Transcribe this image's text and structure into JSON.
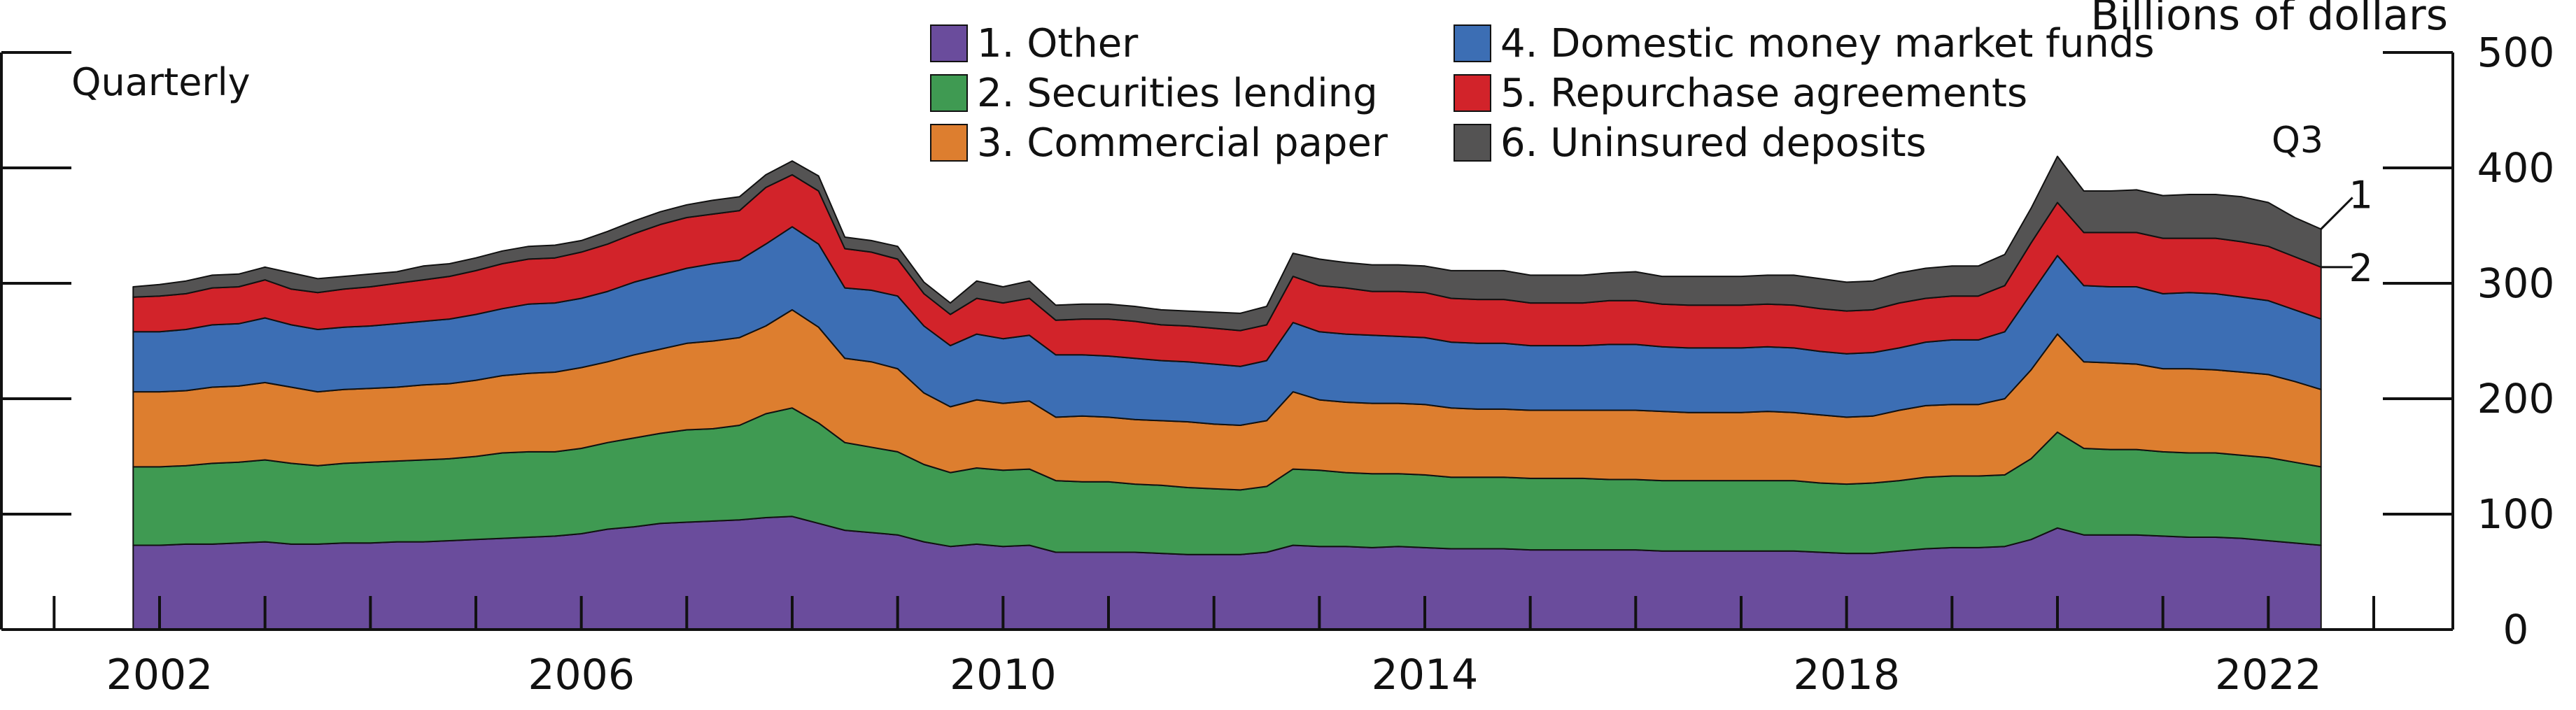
{
  "chart_data": {
    "type": "area",
    "stacked": true,
    "frequency_note": "Quarterly",
    "ylabel": "Billions of dollars",
    "ylim": [
      0,
      500
    ],
    "yticks": [
      0,
      100,
      200,
      300,
      400,
      500
    ],
    "xlim": [
      2000.5,
      2023.75
    ],
    "x_tick_labels": [
      {
        "x": 2002,
        "label": "2002"
      },
      {
        "x": 2006,
        "label": "2006"
      },
      {
        "x": 2010,
        "label": "2010"
      },
      {
        "x": 2014,
        "label": "2014"
      },
      {
        "x": 2018,
        "label": "2018"
      },
      {
        "x": 2022,
        "label": "2022"
      }
    ],
    "last_period_label": "Q3",
    "line_labels": [
      {
        "text": "1",
        "series": "total"
      },
      {
        "text": "2",
        "series": "total_excl_uninsured"
      }
    ],
    "legend": {
      "placement": "top-center",
      "entries": [
        {
          "label": "1. Other",
          "color": "#6a4c9c"
        },
        {
          "label": "2. Securities lending",
          "color": "#3f9a52"
        },
        {
          "label": "3. Commercial paper",
          "color": "#dd7e2f"
        },
        {
          "label": "4. Domestic money market funds",
          "color": "#3c6eb4"
        },
        {
          "label": "5. Repurchase agreements",
          "color": "#d2232a"
        },
        {
          "label": "6. Uninsured deposits",
          "color": "#545353"
        }
      ]
    },
    "x": [
      2001.75,
      2002.0,
      2002.25,
      2002.5,
      2002.75,
      2003.0,
      2003.25,
      2003.5,
      2003.75,
      2004.0,
      2004.25,
      2004.5,
      2004.75,
      2005.0,
      2005.25,
      2005.5,
      2005.75,
      2006.0,
      2006.25,
      2006.5,
      2006.75,
      2007.0,
      2007.25,
      2007.5,
      2007.75,
      2008.0,
      2008.25,
      2008.5,
      2008.75,
      2009.0,
      2009.25,
      2009.5,
      2009.75,
      2010.0,
      2010.25,
      2010.5,
      2010.75,
      2011.0,
      2011.25,
      2011.5,
      2011.75,
      2012.0,
      2012.25,
      2012.5,
      2012.75,
      2013.0,
      2013.25,
      2013.5,
      2013.75,
      2014.0,
      2014.25,
      2014.5,
      2014.75,
      2015.0,
      2015.25,
      2015.5,
      2015.75,
      2016.0,
      2016.25,
      2016.5,
      2016.75,
      2017.0,
      2017.25,
      2017.5,
      2017.75,
      2018.0,
      2018.25,
      2018.5,
      2018.75,
      2019.0,
      2019.25,
      2019.5,
      2019.75,
      2020.0,
      2020.25,
      2020.5,
      2020.75,
      2021.0,
      2021.25,
      2021.5,
      2021.75,
      2022.0,
      2022.25,
      2022.5
    ],
    "series": [
      {
        "name": "1. Other",
        "color": "#6a4c9c",
        "values": [
          73,
          73,
          74,
          74,
          75,
          76,
          74,
          74,
          75,
          75,
          76,
          76,
          77,
          78,
          79,
          80,
          81,
          83,
          87,
          89,
          92,
          93,
          94,
          95,
          97,
          98,
          92,
          86,
          84,
          82,
          76,
          72,
          74,
          72,
          73,
          67,
          67,
          67,
          67,
          66,
          65,
          65,
          65,
          67,
          73,
          72,
          72,
          71,
          72,
          71,
          70,
          70,
          70,
          69,
          69,
          69,
          69,
          69,
          68,
          68,
          68,
          68,
          68,
          68,
          67,
          66,
          66,
          68,
          70,
          71,
          71,
          72,
          78,
          88,
          82,
          82,
          82,
          81,
          80,
          80,
          79,
          77,
          75,
          73
        ]
      },
      {
        "name": "2. Securities lending",
        "color": "#3f9a52",
        "values": [
          68,
          68,
          68,
          70,
          70,
          71,
          70,
          68,
          69,
          70,
          70,
          71,
          71,
          72,
          74,
          74,
          73,
          74,
          75,
          77,
          78,
          80,
          80,
          82,
          90,
          94,
          87,
          76,
          74,
          72,
          67,
          64,
          66,
          66,
          66,
          62,
          61,
          61,
          59,
          59,
          58,
          57,
          56,
          57,
          66,
          66,
          64,
          64,
          63,
          63,
          62,
          62,
          62,
          62,
          62,
          62,
          61,
          61,
          61,
          61,
          61,
          61,
          61,
          61,
          60,
          60,
          61,
          61,
          62,
          62,
          62,
          62,
          70,
          83,
          75,
          74,
          74,
          73,
          73,
          73,
          72,
          72,
          70,
          68
        ]
      },
      {
        "name": "3. Commercial paper",
        "color": "#dd7e2f",
        "values": [
          65,
          65,
          65,
          66,
          66,
          67,
          66,
          64,
          64,
          64,
          64,
          65,
          65,
          66,
          67,
          68,
          69,
          70,
          70,
          72,
          73,
          75,
          76,
          76,
          76,
          85,
          83,
          73,
          74,
          72,
          62,
          57,
          59,
          58,
          59,
          55,
          57,
          56,
          56,
          56,
          57,
          56,
          56,
          57,
          67,
          61,
          61,
          61,
          61,
          61,
          60,
          59,
          59,
          59,
          59,
          59,
          60,
          60,
          60,
          59,
          59,
          59,
          60,
          59,
          59,
          58,
          58,
          61,
          62,
          62,
          62,
          66,
          77,
          85,
          75,
          75,
          74,
          72,
          73,
          72,
          72,
          72,
          70,
          67
        ]
      },
      {
        "name": "4. Domestic money market funds",
        "color": "#3c6eb4",
        "values": [
          52,
          52,
          53,
          54,
          54,
          56,
          54,
          54,
          54,
          54,
          55,
          55,
          56,
          57,
          58,
          60,
          60,
          60,
          61,
          63,
          64,
          65,
          67,
          67,
          71,
          72,
          72,
          61,
          62,
          63,
          58,
          53,
          57,
          56,
          57,
          54,
          53,
          53,
          53,
          52,
          52,
          52,
          51,
          52,
          60,
          59,
          59,
          59,
          58,
          58,
          57,
          57,
          57,
          56,
          56,
          56,
          57,
          57,
          56,
          56,
          56,
          56,
          56,
          56,
          55,
          55,
          55,
          54,
          55,
          56,
          56,
          58,
          66,
          68,
          66,
          66,
          67,
          65,
          66,
          66,
          65,
          64,
          62,
          61
        ]
      },
      {
        "name": "5. Repurchase agreements",
        "color": "#d2232a",
        "values": [
          30,
          31,
          31,
          32,
          32,
          33,
          31,
          32,
          33,
          34,
          35,
          36,
          37,
          38,
          39,
          39,
          39,
          40,
          41,
          42,
          44,
          44,
          43,
          43,
          49,
          45,
          46,
          34,
          33,
          32,
          28,
          27,
          31,
          31,
          32,
          30,
          31,
          32,
          32,
          31,
          31,
          31,
          31,
          31,
          40,
          40,
          40,
          38,
          39,
          39,
          38,
          38,
          38,
          37,
          37,
          37,
          38,
          38,
          37,
          37,
          37,
          37,
          37,
          37,
          37,
          37,
          37,
          39,
          38,
          38,
          38,
          40,
          44,
          46,
          46,
          47,
          47,
          48,
          47,
          48,
          48,
          47,
          46,
          45
        ]
      },
      {
        "name": "6. Uninsured deposits",
        "color": "#545353",
        "values": [
          9,
          10,
          11,
          11,
          11,
          11,
          14,
          12,
          11,
          11,
          10,
          12,
          11,
          11,
          11,
          11,
          11,
          10,
          11,
          11,
          11,
          11,
          12,
          12,
          11,
          12,
          13,
          10,
          10,
          11,
          10,
          10,
          15,
          14,
          15,
          13,
          13,
          13,
          13,
          13,
          13,
          14,
          15,
          16,
          20,
          23,
          22,
          23,
          23,
          23,
          24,
          25,
          25,
          24,
          24,
          24,
          24,
          25,
          24,
          25,
          25,
          25,
          25,
          26,
          26,
          25,
          25,
          26,
          26,
          26,
          26,
          27,
          30,
          40,
          36,
          36,
          37,
          37,
          38,
          38,
          39,
          38,
          34,
          33
        ]
      }
    ]
  }
}
